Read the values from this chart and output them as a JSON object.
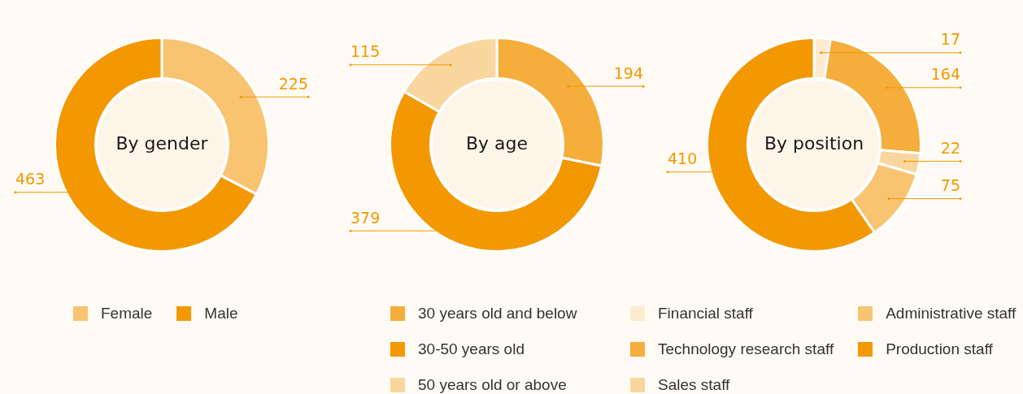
{
  "chart_data": [
    {
      "type": "donut",
      "title": "By gender",
      "categories": [
        "Female",
        "Male"
      ],
      "values": [
        225,
        463
      ],
      "colors": [
        "#f8c471",
        "#f39800"
      ],
      "data_labels": true,
      "legend": "bottom"
    },
    {
      "type": "donut",
      "title": "By age",
      "categories": [
        "30 years old and below",
        "30-50 years old",
        "50 years old or above"
      ],
      "values": [
        194,
        379,
        115
      ],
      "colors": [
        "#f5ad3c",
        "#f39800",
        "#fad69f"
      ],
      "data_labels": true,
      "legend": "bottom"
    },
    {
      "type": "donut",
      "title": "By position",
      "categories": [
        "Financial staff",
        "Technology research staff",
        "Sales staff",
        "Administrative staff",
        "Production staff"
      ],
      "values": [
        17,
        164,
        22,
        75,
        410
      ],
      "colors": [
        "#fdebd0",
        "#f5ad3c",
        "#fad69f",
        "#f8c471",
        "#f39800"
      ],
      "data_labels": true,
      "legend": "bottom"
    }
  ]
}
